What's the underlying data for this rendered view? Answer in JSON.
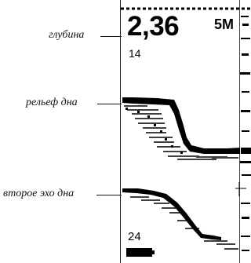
{
  "labels": {
    "depth": "глубина",
    "bottom_relief": "рельеф дна",
    "second_echo": "второе эхо дна"
  },
  "display": {
    "depth_reading": "2,36",
    "range": "5M",
    "scale_top": "14",
    "scale_bottom": "24"
  },
  "icons": {
    "battery": "battery-indicator-icon"
  },
  "colors": {
    "ink": "#000000",
    "background": "#ffffff"
  }
}
